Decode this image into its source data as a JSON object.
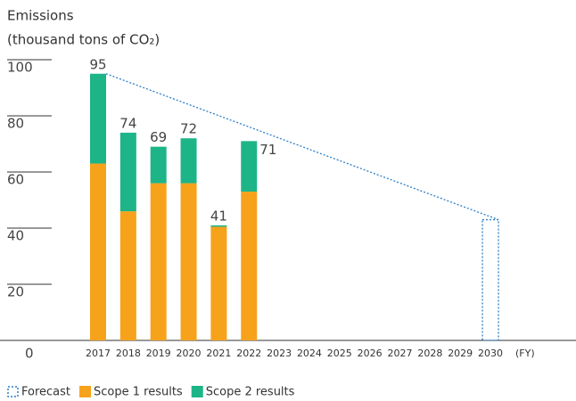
{
  "chart_data": {
    "type": "stacked_bar",
    "title": "Emissions",
    "subtitle": "(thousand tons of CO₂)",
    "x_label": "(FY)",
    "categories": [
      "2017",
      "2018",
      "2019",
      "2020",
      "2021",
      "2022",
      "2023",
      "2024",
      "2025",
      "2026",
      "2027",
      "2028",
      "2029",
      "2030"
    ],
    "series": [
      {
        "name": "Scope 1 results",
        "color": "#f7a21b",
        "values": [
          63,
          46,
          56,
          56,
          40.5,
          53,
          null,
          null,
          null,
          null,
          null,
          null,
          null,
          null
        ]
      },
      {
        "name": "Scope 2 results",
        "color": "#1db488",
        "values": [
          32,
          28,
          13,
          16,
          0.5,
          18,
          null,
          null,
          null,
          null,
          null,
          null,
          null,
          null
        ]
      },
      {
        "name": "Forecast",
        "color": "#2a7fc9",
        "values": [
          null,
          null,
          null,
          null,
          null,
          null,
          null,
          null,
          null,
          null,
          null,
          null,
          null,
          43
        ]
      }
    ],
    "total_labels": [
      95,
      74,
      69,
      72,
      41,
      71,
      null,
      null,
      null,
      null,
      null,
      null,
      null,
      null
    ],
    "ylim": [
      0,
      100
    ],
    "yticks": [
      0,
      20,
      40,
      60,
      80,
      100
    ]
  }
}
